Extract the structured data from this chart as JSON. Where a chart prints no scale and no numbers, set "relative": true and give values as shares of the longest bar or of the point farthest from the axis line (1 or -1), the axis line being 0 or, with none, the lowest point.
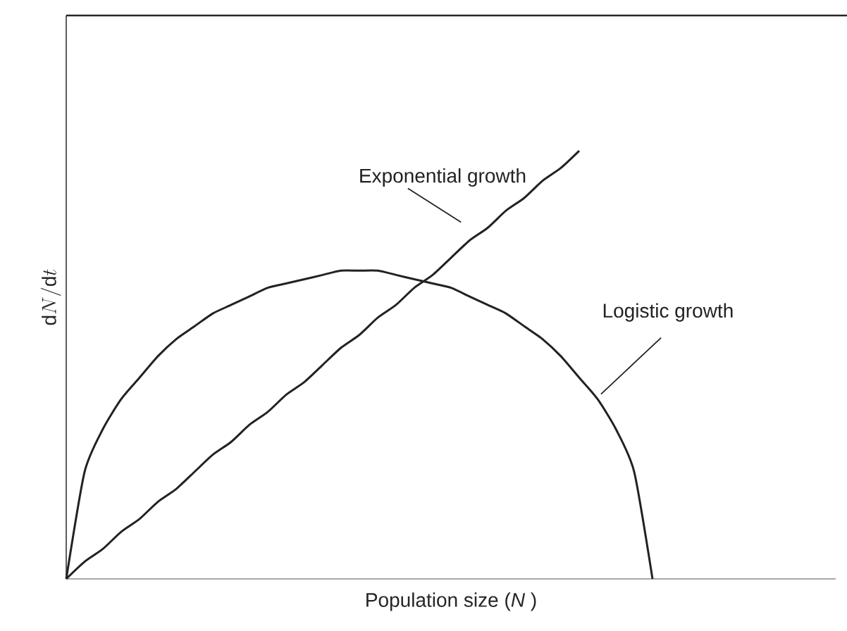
{
  "chart_data": {
    "type": "line",
    "relative": true,
    "xlabel": "Population size (*N* )",
    "ylabel": "\\mathrm{d}N/\\mathrm{d}t",
    "categories": [
      null,
      null,
      null,
      null,
      null,
      null,
      null,
      null,
      null,
      null,
      null,
      null,
      null,
      null,
      null,
      null,
      null,
      null,
      null,
      null,
      null,
      null,
      null,
      null,
      null,
      null,
      null,
      null,
      null,
      null,
      null,
      null,
      null,
      null,
      null,
      null,
      null,
      null,
      null,
      null,
      null,
      null,
      null
    ],
    "series": [
      {
        "name": "Exponential growth",
        "color": "#222222",
        "values": [
          0,
          0.04,
          0.07,
          0.11,
          0.14,
          0.18,
          0.21,
          0.25,
          0.29,
          0.32,
          0.36,
          0.39,
          0.43,
          0.46,
          0.5,
          0.54,
          0.57,
          0.61,
          0.64,
          0.68,
          0.71,
          0.75,
          0.79,
          0.82,
          0.86,
          0.89,
          0.93,
          0.96,
          1,
          null,
          null,
          null,
          null,
          null,
          null,
          null,
          null,
          null,
          null,
          null,
          null,
          null,
          null
        ]
      },
      {
        "name": "Logistic growth",
        "color": "#222222",
        "values": [
          0,
          0.25,
          0.35,
          0.42,
          0.47,
          0.52,
          0.56,
          0.59,
          0.62,
          0.64,
          0.66,
          0.68,
          0.69,
          0.7,
          0.71,
          0.72,
          0.72,
          0.72,
          0.71,
          0.7,
          0.69,
          0.68,
          0.66,
          0.64,
          0.62,
          0.59,
          0.56,
          0.52,
          0.47,
          0.42,
          0.35,
          0.25,
          0,
          null,
          null,
          null,
          null,
          null,
          null,
          null,
          null,
          null,
          null
        ]
      }
    ]
  }
}
